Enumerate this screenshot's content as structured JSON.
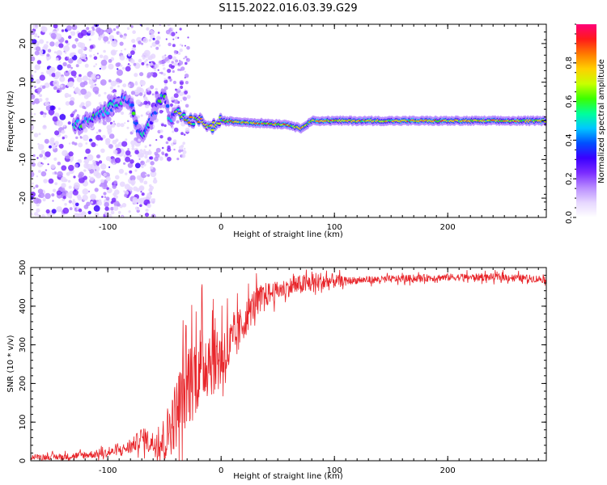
{
  "figure": {
    "title": "S115.2022.016.03.39.G29"
  },
  "chart_data": [
    {
      "type": "heatmap",
      "xlabel": "Height of straight line (km)",
      "ylabel": "Frequency (Hz)",
      "xlim": [
        -168,
        287
      ],
      "ylim": [
        -25,
        25
      ],
      "x_ticks": [
        -100,
        0,
        100,
        200
      ],
      "y_ticks": [
        -20,
        -10,
        0,
        10,
        20
      ],
      "grid": false,
      "colormap": [
        "#ffffff",
        "#e6d7ff",
        "#b98cff",
        "#7b2cff",
        "#3a00ff",
        "#0050ff",
        "#00c8ff",
        "#00ff9a",
        "#3cff00",
        "#c8ff00",
        "#ffd000",
        "#ff7a00",
        "#ff1a1a",
        "#ff0078"
      ],
      "ridge_track": [
        {
          "x": -125,
          "f": -1
        },
        {
          "x": -110,
          "f": 1
        },
        {
          "x": -95,
          "f": 4
        },
        {
          "x": -85,
          "f": 6
        },
        {
          "x": -80,
          "f": 5
        },
        {
          "x": -72,
          "f": -4
        },
        {
          "x": -65,
          "f": -2
        },
        {
          "x": -58,
          "f": 3
        },
        {
          "x": -50,
          "f": 7
        },
        {
          "x": -45,
          "f": 0
        },
        {
          "x": -38,
          "f": 2
        },
        {
          "x": -30,
          "f": 0
        },
        {
          "x": -15,
          "f": 0
        },
        {
          "x": -10,
          "f": -2
        },
        {
          "x": 0,
          "f": 0
        },
        {
          "x": 60,
          "f": -1
        },
        {
          "x": 70,
          "f": -2
        },
        {
          "x": 80,
          "f": 0
        },
        {
          "x": 287,
          "f": 0
        }
      ],
      "colorbar": {
        "label": "Normalized spectral amplitude",
        "range": [
          0,
          1
        ],
        "ticks": [
          "0.0",
          "0.2",
          "0.4",
          "0.6",
          "0.8"
        ]
      }
    },
    {
      "type": "line",
      "xlabel": "Height of straight line (km)",
      "ylabel": "SNR (10 * v/v)",
      "xlim": [
        -168,
        287
      ],
      "ylim": [
        0,
        500
      ],
      "x_ticks": [
        -100,
        0,
        100,
        200
      ],
      "y_ticks": [
        0,
        100,
        200,
        300,
        400,
        500
      ],
      "grid": false,
      "series": [
        {
          "color": "#e8262b",
          "envelope": [
            {
              "x": -168,
              "snr": 10
            },
            {
              "x": -140,
              "snr": 10
            },
            {
              "x": -120,
              "snr": 15
            },
            {
              "x": -100,
              "snr": 20
            },
            {
              "x": -80,
              "snr": 35
            },
            {
              "x": -70,
              "snr": 60
            },
            {
              "x": -60,
              "snr": 45
            },
            {
              "x": -50,
              "snr": 55
            },
            {
              "x": -40,
              "snr": 120
            },
            {
              "x": -30,
              "snr": 200
            },
            {
              "x": -20,
              "snr": 240
            },
            {
              "x": -10,
              "snr": 270
            },
            {
              "x": 0,
              "snr": 270
            },
            {
              "x": 10,
              "snr": 300
            },
            {
              "x": 20,
              "snr": 360
            },
            {
              "x": 30,
              "snr": 410
            },
            {
              "x": 40,
              "snr": 430
            },
            {
              "x": 60,
              "snr": 450
            },
            {
              "x": 80,
              "snr": 460
            },
            {
              "x": 100,
              "snr": 465
            },
            {
              "x": 150,
              "snr": 470
            },
            {
              "x": 200,
              "snr": 475
            },
            {
              "x": 250,
              "snr": 475
            },
            {
              "x": 287,
              "snr": 470
            }
          ],
          "noise": [
            {
              "x": -168,
              "amp": 8
            },
            {
              "x": -90,
              "amp": 15
            },
            {
              "x": -60,
              "amp": 40
            },
            {
              "x": -30,
              "amp": 150
            },
            {
              "x": 0,
              "amp": 120
            },
            {
              "x": 20,
              "amp": 60
            },
            {
              "x": 50,
              "amp": 30
            },
            {
              "x": 90,
              "amp": 35
            },
            {
              "x": 110,
              "amp": 12
            },
            {
              "x": 287,
              "amp": 12
            }
          ]
        }
      ]
    }
  ]
}
